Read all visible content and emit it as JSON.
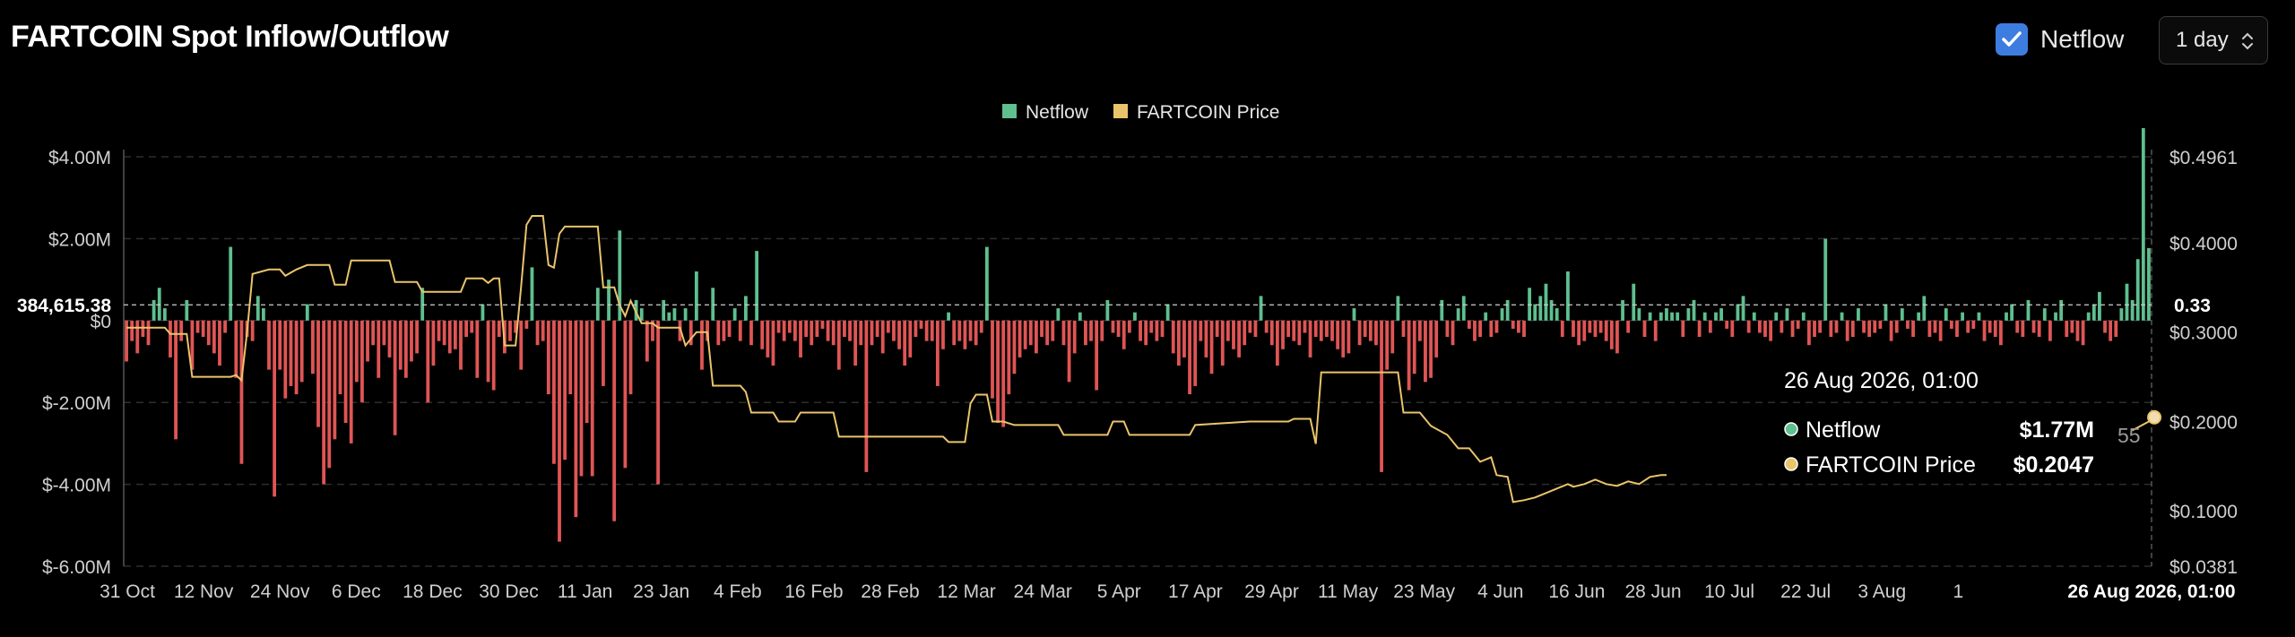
{
  "header": {
    "title": "FARTCOIN Spot Inflow/Outflow",
    "netflow_toggle_label": "Netflow",
    "netflow_checked": true,
    "interval_value": "1 day"
  },
  "colors": {
    "background": "#000000",
    "inflow": "#5fbf8f",
    "outflow": "#e05555",
    "price": "#e9c46a",
    "grid": "#2e2e2e",
    "tooltip_bg": "#000000"
  },
  "chart_data": {
    "type": "bar",
    "legend": [
      {
        "name": "Netflow",
        "color": "#5fbf8f"
      },
      {
        "name": "FARTCOIN Price",
        "color": "#e9c46a"
      }
    ],
    "left_axis": {
      "ticks": [
        "$4.00M",
        "$2.00M",
        "$0",
        "$-2.00M",
        "$-4.00M",
        "$-6.00M"
      ],
      "tick_values": [
        4,
        2,
        0,
        -2,
        -4,
        -6
      ],
      "range_millions": [
        -6,
        4
      ]
    },
    "right_axis": {
      "ticks": [
        "$0.4961",
        "$0.4000",
        "$0.3000",
        "$0.2000",
        "$0.1000",
        "$0.0381"
      ],
      "tick_values": [
        0.4961,
        0.4,
        0.3,
        0.2,
        0.1,
        0.0381
      ],
      "range": [
        0.0381,
        0.4961
      ]
    },
    "x_axis": {
      "ticks": [
        "31 Oct",
        "12 Nov",
        "24 Nov",
        "6 Dec",
        "18 Dec",
        "30 Dec",
        "11 Jan",
        "23 Jan",
        "4 Feb",
        "16 Feb",
        "28 Feb",
        "12 Mar",
        "24 Mar",
        "5 Apr",
        "17 Apr",
        "29 Apr",
        "11 May",
        "23 May",
        "4 Jun",
        "16 Jun",
        "28 Jun",
        "10 Jul",
        "22 Jul",
        "3 Aug",
        "1"
      ]
    },
    "crosshair": {
      "left_value_label": "384,615.38",
      "left_value": 0.3846,
      "right_value_label": "0.33",
      "x_label": "26 Aug 2026, 01:00"
    },
    "netflow_millions": [
      -1.0,
      -0.5,
      -0.8,
      -0.4,
      -0.6,
      0.5,
      0.8,
      0.3,
      -0.9,
      -2.9,
      -0.5,
      0.5,
      -1.2,
      -0.3,
      -0.4,
      -0.6,
      -0.8,
      -1.1,
      -0.3,
      1.8,
      -1.4,
      -3.5,
      -0.4,
      -0.5,
      0.6,
      0.3,
      -1.2,
      -4.3,
      -1.2,
      -1.9,
      -1.6,
      -1.8,
      -1.5,
      0.4,
      -1.3,
      -2.6,
      -4.0,
      -3.6,
      -2.9,
      -1.8,
      -2.5,
      -3.0,
      -1.5,
      -2.0,
      -1.0,
      -0.6,
      -1.4,
      -0.6,
      -0.9,
      -2.8,
      -1.2,
      -1.4,
      -1.0,
      -0.8,
      0.8,
      -2.0,
      -1.1,
      -0.5,
      -0.6,
      -0.8,
      -0.7,
      -1.2,
      -0.4,
      -0.3,
      -1.4,
      0.4,
      -1.5,
      -1.7,
      -0.4,
      -0.8,
      -0.5,
      -0.3,
      -1.2,
      -0.2,
      1.3,
      -0.6,
      -0.5,
      -1.8,
      -3.5,
      -5.4,
      -3.4,
      -1.8,
      -4.8,
      -3.8,
      -2.5,
      -3.8,
      0.8,
      -1.6,
      1.0,
      -4.9,
      2.2,
      -3.6,
      -1.8,
      0.5,
      0.3,
      -1.0,
      -0.5,
      -4.0,
      0.5,
      0.2,
      0.3,
      -0.5,
      0.3,
      -0.6,
      1.2,
      -1.2,
      -0.5,
      0.8,
      -0.6,
      -0.5,
      -0.4,
      0.3,
      -0.5,
      0.6,
      -0.6,
      1.7,
      -0.7,
      -0.9,
      -1.1,
      -0.3,
      -0.5,
      -0.3,
      -0.5,
      -0.9,
      -0.4,
      -0.6,
      -0.4,
      -0.2,
      -0.5,
      -0.6,
      -1.2,
      -0.4,
      -0.5,
      -1.1,
      -0.6,
      -3.7,
      -0.6,
      -0.4,
      -0.8,
      -0.3,
      -0.5,
      -0.7,
      -1.1,
      -0.9,
      -0.4,
      -0.2,
      -0.5,
      -0.5,
      -1.6,
      -0.7,
      0.2,
      -0.6,
      -0.5,
      -0.7,
      -0.5,
      -0.6,
      -0.3,
      1.8,
      -1.9,
      -2.5,
      -2.6,
      -1.8,
      -1.3,
      -0.9,
      -0.7,
      -0.6,
      -0.8,
      -0.4,
      -0.6,
      -0.5,
      0.3,
      -0.6,
      -1.5,
      -0.8,
      0.2,
      -0.6,
      -0.5,
      -1.7,
      -0.5,
      0.5,
      -0.3,
      -0.4,
      -0.7,
      -0.3,
      0.2,
      -0.5,
      -0.6,
      -0.3,
      -0.5,
      -0.4,
      0.4,
      -0.8,
      -1.1,
      -0.9,
      -1.8,
      -1.6,
      -0.5,
      -0.9,
      -1.3,
      -0.4,
      -1.1,
      -0.5,
      -0.7,
      -0.9,
      -0.6,
      -0.3,
      -0.4,
      0.6,
      -0.3,
      -0.6,
      -1.1,
      -0.7,
      -0.4,
      -0.5,
      -0.6,
      -0.3,
      -0.9,
      -0.4,
      -0.5,
      -0.4,
      -0.5,
      -0.7,
      -0.9,
      -0.8,
      0.3,
      -0.6,
      -0.4,
      -0.5,
      -0.6,
      -3.7,
      -1.2,
      -0.8,
      0.6,
      -0.4,
      -1.7,
      -1.3,
      -0.5,
      -1.5,
      -1.4,
      -0.9,
      0.5,
      -0.4,
      -0.6,
      0.3,
      0.6,
      -0.2,
      -0.5,
      -0.4,
      0.2,
      -0.4,
      -0.3,
      0.3,
      0.5,
      -0.2,
      -0.3,
      -0.4,
      0.8,
      0.4,
      0.6,
      0.9,
      0.5,
      0.3,
      -0.4,
      1.2,
      -0.4,
      -0.6,
      -0.5,
      -0.3,
      -0.4,
      -0.3,
      -0.5,
      -0.7,
      -0.8,
      0.5,
      -0.3,
      0.9,
      0.3,
      -0.4,
      0.2,
      -0.5,
      0.2,
      0.3,
      0.2,
      0.2,
      -0.4,
      0.3,
      0.5,
      -0.4,
      0.2,
      -0.3,
      0.2,
      0.3,
      -0.2,
      -0.4,
      0.4,
      0.6,
      -0.3,
      0.2,
      -0.3,
      -0.4,
      -0.5,
      0.2,
      -0.3,
      0.3,
      -0.4,
      -0.2,
      0.2,
      -0.6,
      -0.4,
      -0.3,
      2.0,
      -0.4,
      -0.3,
      0.2,
      -0.5,
      -0.4,
      0.3,
      -0.3,
      -0.4,
      -0.3,
      -0.2,
      0.4,
      -0.5,
      -0.3,
      0.3,
      -0.2,
      -0.4,
      0.2,
      0.6,
      -0.4,
      -0.3,
      -0.5,
      0.3,
      -0.2,
      -0.4,
      0.2,
      -0.3,
      -0.2,
      0.2,
      -0.5,
      -0.3,
      -0.4,
      -0.6,
      0.2,
      0.4,
      -0.3,
      -0.4,
      0.5,
      -0.3,
      -0.4,
      0.3,
      -0.5,
      0.2,
      0.5,
      -0.4,
      -0.3,
      -0.5,
      -0.6,
      0.2,
      0.4,
      0.7,
      -0.3,
      -0.5,
      -0.4,
      0.3,
      0.9,
      0.5,
      1.5,
      4.7,
      1.77
    ],
    "price_points": [
      [
        0,
        0.305
      ],
      [
        7,
        0.305
      ],
      [
        8,
        0.298
      ],
      [
        11,
        0.298
      ],
      [
        12,
        0.25
      ],
      [
        19,
        0.25
      ],
      [
        20,
        0.252
      ],
      [
        21,
        0.246
      ],
      [
        22,
        0.3
      ],
      [
        23,
        0.365
      ],
      [
        26,
        0.37
      ],
      [
        28,
        0.37
      ],
      [
        29,
        0.363
      ],
      [
        31,
        0.37
      ],
      [
        33,
        0.375
      ],
      [
        37,
        0.375
      ],
      [
        38,
        0.353
      ],
      [
        40,
        0.353
      ],
      [
        41,
        0.38
      ],
      [
        48,
        0.38
      ],
      [
        49,
        0.356
      ],
      [
        53,
        0.356
      ],
      [
        54,
        0.345
      ],
      [
        61,
        0.345
      ],
      [
        62,
        0.36
      ],
      [
        65,
        0.36
      ],
      [
        66,
        0.355
      ],
      [
        67,
        0.36
      ],
      [
        68,
        0.36
      ],
      [
        69,
        0.285
      ],
      [
        71,
        0.285
      ],
      [
        72,
        0.35
      ],
      [
        73,
        0.42
      ],
      [
        74,
        0.43
      ],
      [
        76,
        0.43
      ],
      [
        77,
        0.375
      ],
      [
        78,
        0.372
      ],
      [
        79,
        0.41
      ],
      [
        80,
        0.418
      ],
      [
        83,
        0.418
      ],
      [
        86,
        0.418
      ],
      [
        87,
        0.35
      ],
      [
        89,
        0.35
      ],
      [
        90,
        0.33
      ],
      [
        91,
        0.318
      ],
      [
        92,
        0.335
      ],
      [
        93,
        0.322
      ],
      [
        94,
        0.31
      ],
      [
        96,
        0.31
      ],
      [
        97,
        0.305
      ],
      [
        101,
        0.305
      ],
      [
        102,
        0.285
      ],
      [
        104,
        0.3
      ],
      [
        105,
        0.3
      ],
      [
        106,
        0.3
      ],
      [
        107,
        0.24
      ],
      [
        112,
        0.24
      ],
      [
        113,
        0.233
      ],
      [
        114,
        0.21
      ],
      [
        118,
        0.21
      ],
      [
        119,
        0.2
      ],
      [
        122,
        0.2
      ],
      [
        123,
        0.21
      ],
      [
        129,
        0.21
      ],
      [
        130,
        0.183
      ],
      [
        149,
        0.183
      ],
      [
        150,
        0.177
      ],
      [
        153,
        0.177
      ],
      [
        154,
        0.22
      ],
      [
        155,
        0.23
      ],
      [
        157,
        0.23
      ],
      [
        158,
        0.2
      ],
      [
        160,
        0.2
      ],
      [
        162,
        0.196
      ],
      [
        170,
        0.196
      ],
      [
        171,
        0.185
      ],
      [
        179,
        0.185
      ],
      [
        180,
        0.2
      ],
      [
        182,
        0.2
      ],
      [
        183,
        0.185
      ],
      [
        194,
        0.185
      ],
      [
        195,
        0.196
      ],
      [
        205,
        0.2
      ],
      [
        212,
        0.2
      ],
      [
        213,
        0.203
      ],
      [
        216,
        0.203
      ],
      [
        217,
        0.175
      ],
      [
        218,
        0.255
      ],
      [
        232,
        0.255
      ],
      [
        233,
        0.21
      ],
      [
        236,
        0.21
      ],
      [
        238,
        0.195
      ],
      [
        241,
        0.185
      ],
      [
        243,
        0.17
      ],
      [
        245,
        0.17
      ],
      [
        247,
        0.155
      ],
      [
        249,
        0.16
      ],
      [
        250,
        0.14
      ],
      [
        252,
        0.138
      ],
      [
        253,
        0.11
      ],
      [
        255,
        0.112
      ],
      [
        257,
        0.115
      ],
      [
        259,
        0.12
      ],
      [
        261,
        0.125
      ],
      [
        263,
        0.13
      ],
      [
        264,
        0.127
      ],
      [
        266,
        0.13
      ],
      [
        268,
        0.135
      ],
      [
        270,
        0.13
      ],
      [
        272,
        0.128
      ],
      [
        274,
        0.133
      ],
      [
        276,
        0.13
      ],
      [
        278,
        0.138
      ],
      [
        280,
        0.14
      ],
      [
        281,
        0.14
      ]
    ],
    "price_tail_points": [
      [
        366,
        0.19
      ],
      [
        369,
        0.2
      ],
      [
        370,
        0.2047
      ]
    ]
  },
  "tooltip": {
    "date": "26 Aug 2026, 01:00",
    "rows": [
      {
        "label": "Netflow",
        "value": "$1.77M",
        "color": "#5fbf8f"
      },
      {
        "label": "FARTCOIN Price",
        "value": "$0.2047",
        "color": "#e9c46a"
      }
    ],
    "overlap_label": "55"
  }
}
